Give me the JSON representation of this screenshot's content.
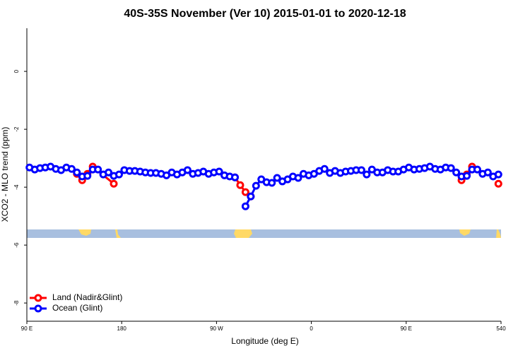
{
  "chart_data": {
    "type": "line",
    "title": "40S-35S November (Ver 10)   2015-01-01 to 2020-12-18",
    "x_label": "Longitude (deg E)",
    "y_label": "XCO2 - MLO trend (ppm)",
    "xlim": [
      90,
      540
    ],
    "ylim": [
      -8.63,
      1.49
    ],
    "xticks": [
      {
        "value": 90,
        "label": "90 E"
      },
      180,
      {
        "value": 270,
        "label": "90 W"
      },
      {
        "value": 360,
        "label": "0"
      },
      {
        "value": 450,
        "label": "90 E"
      },
      540
    ],
    "yticks": [
      -8,
      -6,
      -4,
      -2,
      0
    ],
    "legend": "bottom-left",
    "series": [
      {
        "name": "Land (Nadir&Glint)",
        "color": "#ff0000",
        "x": [
          137.5,
          142.5,
          147.5,
          152.5,
          172.5,
          null,
          287.5,
          292.5,
          297.5,
          302.5,
          null,
          502.5,
          507.5,
          512.5,
          null,
          537.5
        ],
        "values": [
          -3.54,
          -3.76,
          -3.54,
          -3.29,
          -3.88,
          null,
          -3.66,
          -3.93,
          -4.17,
          -4.32,
          null,
          -3.76,
          -3.56,
          -3.29,
          null,
          -3.88
        ]
      },
      {
        "name": "Ocean (Glint)",
        "color": "#0000ff",
        "x": [
          92.5,
          97.5,
          102.5,
          107.5,
          112.5,
          117.5,
          122.5,
          127.5,
          132.5,
          137.5,
          142.5,
          147.5,
          152.5,
          157.5,
          162.5,
          167.5,
          172.5,
          177.5,
          182.5,
          187.5,
          192.5,
          197.5,
          202.5,
          207.5,
          212.5,
          217.5,
          222.5,
          227.5,
          232.5,
          237.5,
          242.5,
          247.5,
          252.5,
          257.5,
          262.5,
          267.5,
          272.5,
          277.5,
          282.5,
          287.5,
          292.5,
          297.5,
          302.5,
          307.5,
          312.5,
          317.5,
          322.5,
          327.5,
          332.5,
          337.5,
          342.5,
          347.5,
          352.5,
          357.5,
          362.5,
          367.5,
          372.5,
          377.5,
          382.5,
          387.5,
          392.5,
          397.5,
          402.5,
          407.5,
          412.5,
          417.5,
          422.5,
          427.5,
          432.5,
          437.5,
          442.5,
          447.5,
          452.5,
          457.5,
          462.5,
          467.5,
          472.5,
          477.5,
          482.5,
          487.5,
          492.5,
          497.5,
          502.5,
          507.5,
          512.5,
          517.5,
          522.5,
          527.5,
          532.5,
          537.5
        ],
        "values": [
          -3.32,
          -3.39,
          -3.34,
          -3.32,
          -3.29,
          -3.37,
          -3.41,
          -3.32,
          -3.37,
          -3.49,
          -3.63,
          -3.61,
          -3.39,
          -3.39,
          -3.56,
          -3.49,
          -3.61,
          -3.56,
          -3.41,
          -3.44,
          -3.44,
          -3.46,
          -3.49,
          -3.51,
          -3.51,
          -3.54,
          -3.59,
          -3.49,
          -3.56,
          -3.49,
          -3.41,
          -3.54,
          -3.51,
          -3.46,
          -3.54,
          -3.49,
          -3.46,
          -3.59,
          -3.63,
          -3.66,
          null,
          -4.66,
          -4.32,
          -3.95,
          -3.73,
          -3.83,
          -3.85,
          -3.68,
          -3.8,
          -3.73,
          -3.63,
          -3.68,
          -3.54,
          -3.59,
          -3.54,
          -3.44,
          -3.37,
          -3.51,
          -3.44,
          -3.51,
          -3.46,
          -3.44,
          -3.41,
          -3.41,
          -3.56,
          -3.39,
          -3.49,
          -3.49,
          -3.41,
          -3.46,
          -3.46,
          -3.39,
          -3.32,
          -3.39,
          -3.37,
          -3.34,
          -3.29,
          -3.37,
          -3.39,
          -3.32,
          -3.34,
          -3.49,
          -3.63,
          -3.61,
          -3.39,
          -3.39,
          -3.54,
          -3.49,
          -3.63,
          -3.56
        ]
      }
    ]
  }
}
